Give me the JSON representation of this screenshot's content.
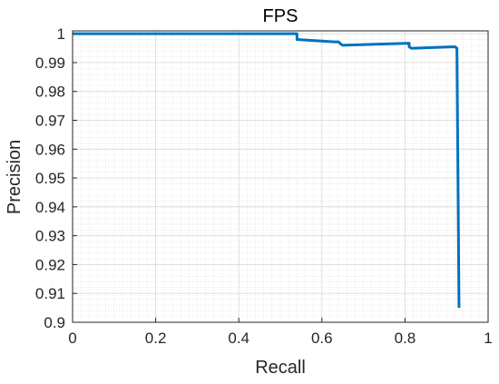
{
  "chart_data": {
    "type": "line",
    "title": "FPS",
    "xlabel": "Recall",
    "ylabel": "Precision",
    "xlim": [
      0,
      1
    ],
    "ylim": [
      0.9,
      1.001
    ],
    "x_ticks": [
      0,
      0.2,
      0.4,
      0.6,
      0.8,
      1
    ],
    "x_tick_labels": [
      "0",
      "0.2",
      "0.4",
      "0.6",
      "0.8",
      "1"
    ],
    "y_ticks": [
      0.9,
      0.91,
      0.92,
      0.93,
      0.94,
      0.95,
      0.96,
      0.97,
      0.98,
      0.99,
      1
    ],
    "y_tick_labels": [
      "0.9",
      "0.91",
      "0.92",
      "0.93",
      "0.94",
      "0.95",
      "0.96",
      "0.97",
      "0.98",
      "0.99",
      "1"
    ],
    "grid": "major and minor",
    "series": [
      {
        "color": "#0072BD",
        "x": [
          0,
          0.54,
          0.54,
          0.63,
          0.64,
          0.645,
          0.65,
          0.81,
          0.81,
          0.815,
          0.82,
          0.92,
          0.925,
          0.93
        ],
        "y": [
          1.0,
          1.0,
          0.998,
          0.9972,
          0.9972,
          0.9965,
          0.996,
          0.9967,
          0.9955,
          0.995,
          0.995,
          0.9955,
          0.995,
          0.905
        ]
      }
    ]
  }
}
